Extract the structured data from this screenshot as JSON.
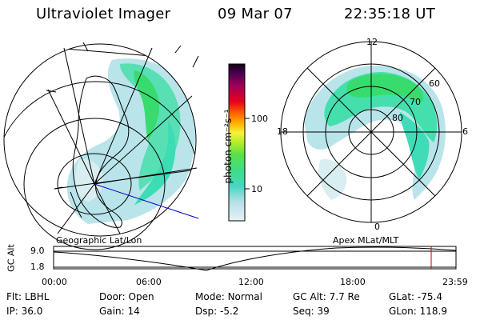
{
  "header": {
    "title": "Ultraviolet Imager",
    "date": "09 Mar 07",
    "time": "22:35:18 UT"
  },
  "colorbar": {
    "unit_label": "photon cm⁻²s⁻¹",
    "ticks": [
      "100",
      "10"
    ]
  },
  "polar_plot": {
    "mlt_labels": {
      "top": "12",
      "left": "18",
      "right": "6",
      "bottom": "0"
    },
    "lat_labels": [
      "60",
      "70",
      "80"
    ]
  },
  "panel_labels": {
    "left": "Geographic Lat/Lon",
    "right": "Apex MLat/MLT"
  },
  "altitude_plot": {
    "ylabel": "GC Alt",
    "y_ticks": [
      "9.0",
      "1.8"
    ],
    "x_ticks": [
      "00:00",
      "06:00",
      "12:00",
      "18:00",
      "23:59"
    ],
    "current_time_marker": "22:35"
  },
  "info_rows": [
    [
      {
        "label": "Flt:",
        "value": "LBHL"
      },
      {
        "label": "Door:",
        "value": "Open"
      },
      {
        "label": "Mode:",
        "value": "Normal"
      },
      {
        "label": "GC Alt:",
        "value": "7.7 Re"
      },
      {
        "label": "GLat:",
        "value": "-75.4"
      }
    ],
    [
      {
        "label": "IP:",
        "value": "36.0"
      },
      {
        "label": "Gain:",
        "value": "14"
      },
      {
        "label": "Dsp:",
        "value": "-5.2"
      },
      {
        "label": "Seq:",
        "value": "39"
      },
      {
        "label": "GLon:",
        "value": "118.9"
      }
    ]
  ],
  "colors": {
    "aurora_low": "#b9e4ea",
    "aurora_mid": "#4ee0b6",
    "aurora_high": "#38dc6e",
    "marker": "#c00000",
    "track": "#0000cc"
  }
}
